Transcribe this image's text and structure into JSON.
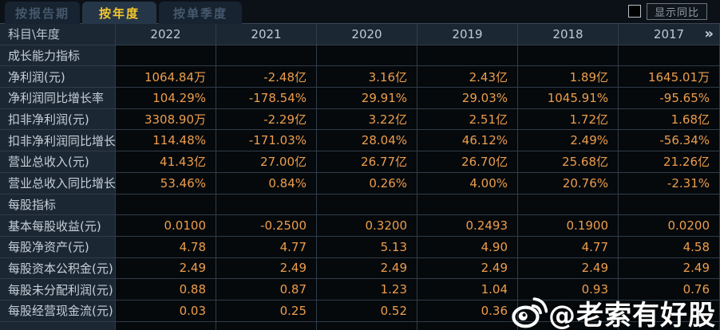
{
  "tabs": [
    {
      "label": "按报告期",
      "active": false
    },
    {
      "label": "按年度",
      "active": true
    },
    {
      "label": "按单季度",
      "active": false
    }
  ],
  "toolbar": {
    "show_yoy_label": "显示同比",
    "checkbox_checked": false
  },
  "table": {
    "corner_header": "科目\\年度",
    "years": [
      "2022",
      "2021",
      "2020",
      "2019",
      "2018",
      "2017"
    ],
    "more_icon": "»",
    "rows": [
      {
        "type": "section",
        "label": "成长能力指标",
        "values": [
          "",
          "",
          "",
          "",
          "",
          ""
        ]
      },
      {
        "type": "data",
        "highlight": true,
        "label": "净利润(元)",
        "values": [
          "1064.84万",
          "-2.48亿",
          "3.16亿",
          "2.43亿",
          "1.89亿",
          "1645.01万"
        ]
      },
      {
        "type": "data",
        "label": "净利润同比增长率",
        "values": [
          "104.29%",
          "-178.54%",
          "29.91%",
          "29.03%",
          "1045.91%",
          "-95.65%"
        ]
      },
      {
        "type": "data",
        "label": "扣非净利润(元)",
        "values": [
          "3308.90万",
          "-2.29亿",
          "3.22亿",
          "2.51亿",
          "1.72亿",
          "1.68亿"
        ]
      },
      {
        "type": "data",
        "label": "扣非净利润同比增长率",
        "values": [
          "114.48%",
          "-171.03%",
          "28.04%",
          "46.12%",
          "2.49%",
          "-56.34%"
        ]
      },
      {
        "type": "data",
        "label": "营业总收入(元)",
        "values": [
          "41.43亿",
          "27.00亿",
          "26.77亿",
          "26.70亿",
          "25.68亿",
          "21.26亿"
        ]
      },
      {
        "type": "data",
        "label": "营业总收入同比增长率",
        "values": [
          "53.46%",
          "0.84%",
          "0.26%",
          "4.00%",
          "20.76%",
          "-2.31%"
        ]
      },
      {
        "type": "section",
        "label": "每股指标",
        "values": [
          "",
          "",
          "",
          "",
          "",
          ""
        ]
      },
      {
        "type": "data",
        "label": "基本每股收益(元)",
        "values": [
          "0.0100",
          "-0.2500",
          "0.3200",
          "0.2493",
          "0.1900",
          "0.0200"
        ]
      },
      {
        "type": "data",
        "label": "每股净资产(元)",
        "values": [
          "4.78",
          "4.77",
          "5.13",
          "4.90",
          "4.77",
          "4.58"
        ]
      },
      {
        "type": "data",
        "label": "每股资本公积金(元)",
        "values": [
          "2.49",
          "2.49",
          "2.49",
          "2.49",
          "2.49",
          "2.49"
        ]
      },
      {
        "type": "data",
        "label": "每股未分配利润(元)",
        "values": [
          "0.88",
          "0.87",
          "1.23",
          "1.04",
          "0.93",
          "0.76"
        ]
      },
      {
        "type": "data",
        "label": "每股经营现金流(元)",
        "values": [
          "0.03",
          "0.25",
          "0.52",
          "0.36",
          "",
          ""
        ]
      },
      {
        "type": "partial",
        "label": "",
        "values": [
          "",
          "",
          "",
          "",
          "",
          ""
        ]
      }
    ]
  },
  "watermark": {
    "handle": "@老索有好股",
    "icon": "weibo-icon"
  },
  "colors": {
    "accent_gold": "#f6c62d",
    "value_orange": "#ed9d4b",
    "highlight_gold": "#f6b93d",
    "panel_navy": "#1b2733",
    "cell_black": "#05090c"
  }
}
